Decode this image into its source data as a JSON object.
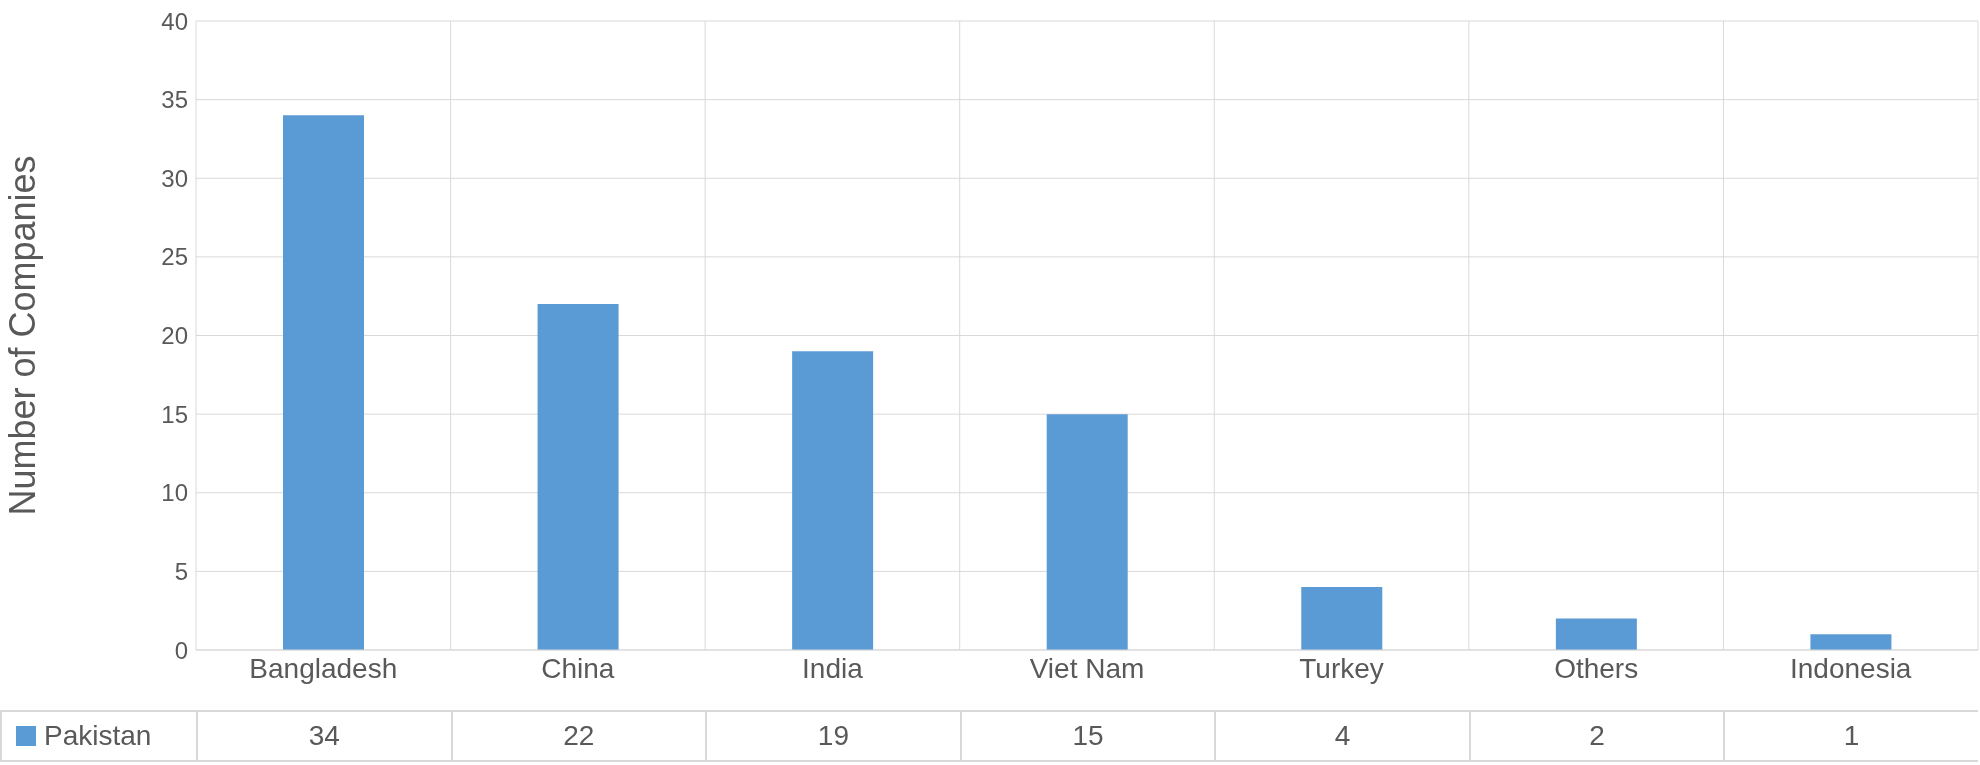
{
  "chart_data": {
    "type": "bar",
    "ylabel": "Number of Companies",
    "categories": [
      "Bangladesh",
      "China",
      "India",
      "Viet Nam",
      "Turkey",
      "Others",
      "Indonesia"
    ],
    "series": [
      {
        "name": "Pakistan",
        "color": "#5b9bd5",
        "values": [
          34,
          22,
          19,
          15,
          4,
          2,
          1
        ]
      }
    ],
    "ylim": [
      0,
      40
    ],
    "yticks": [
      0,
      5,
      10,
      15,
      20,
      25,
      30,
      35,
      40
    ],
    "grid": true,
    "legend": "bottom left",
    "data_labels": true
  }
}
